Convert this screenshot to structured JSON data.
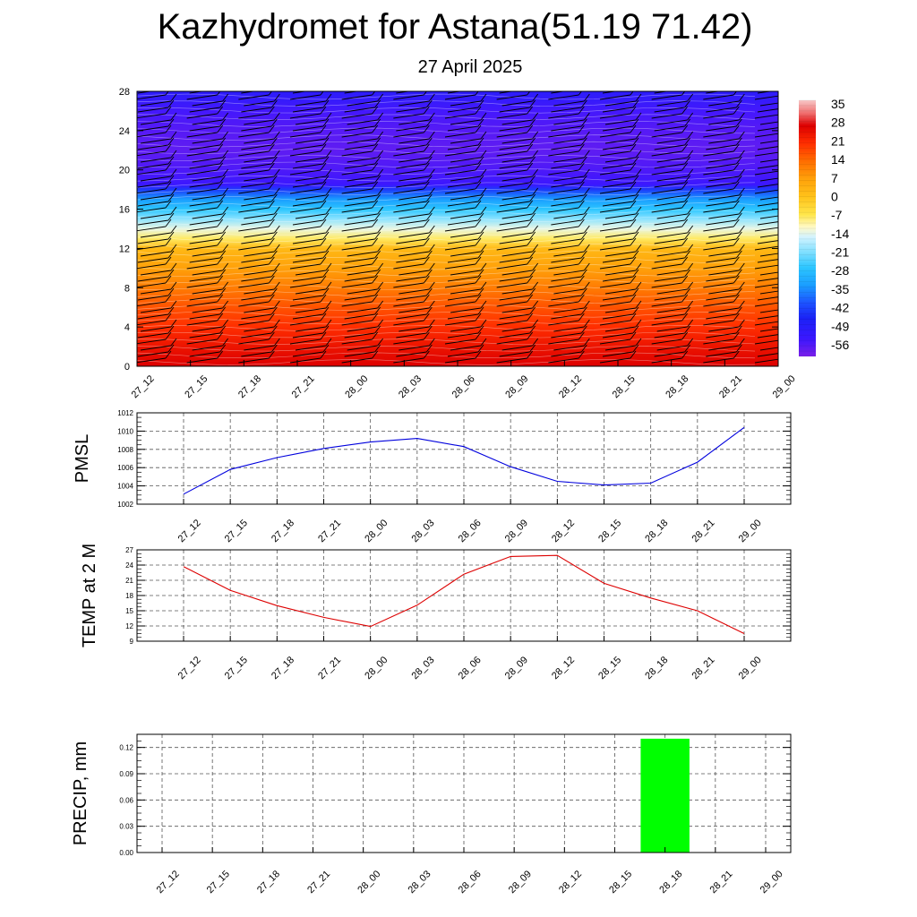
{
  "title": "Kazhydromet for Astana(51.19 71.42)",
  "subtitle": "27 April 2025",
  "colors": {
    "pmsl_line": "#0000dd",
    "temp_line": "#dd0000",
    "precip_bar": "#00ff00",
    "grid": "#555555",
    "frame": "#000000"
  },
  "chart_data": [
    {
      "type": "heatmap",
      "title": "",
      "xlabel": "",
      "ylabel": "",
      "x_categories": [
        "27_12",
        "27_15",
        "27_18",
        "27_21",
        "28_00",
        "28_03",
        "28_06",
        "28_09",
        "28_12",
        "28_15",
        "28_18",
        "28_21",
        "29_00"
      ],
      "y_ticks": [
        0,
        4,
        8,
        12,
        16,
        20,
        24,
        28
      ],
      "ylim": [
        0,
        28
      ],
      "levels_profile": {
        "height": [
          0,
          2,
          4,
          6,
          8,
          10,
          12,
          13,
          14,
          15,
          16,
          17,
          18,
          18.5,
          20,
          22,
          24,
          26,
          28
        ],
        "value": [
          28,
          25,
          21,
          17,
          12,
          7,
          2,
          -8,
          -14,
          -21,
          -28,
          -35,
          -45,
          -56,
          -58,
          -60,
          -59,
          -57,
          -52
        ]
      },
      "colorbar": {
        "labels": [
          "35",
          "28",
          "21",
          "14",
          "7",
          "0",
          "-7",
          "-14",
          "-21",
          "-28",
          "-35",
          "-42",
          "-49",
          "-56"
        ],
        "values": [
          35,
          28,
          21,
          14,
          7,
          0,
          -7,
          -14,
          -21,
          -28,
          -35,
          -42,
          -49,
          -56
        ],
        "range": [
          -63,
          38
        ]
      },
      "wind_barbs": true
    },
    {
      "type": "line",
      "title": "",
      "xlabel": "",
      "ylabel": "PMSL",
      "x": [
        "27_12",
        "27_15",
        "27_18",
        "27_21",
        "28_00",
        "28_03",
        "28_06",
        "28_09",
        "28_12",
        "28_15",
        "28_18",
        "28_21",
        "29_00"
      ],
      "series": [
        {
          "values": [
            1003.1,
            1005.8,
            1007.1,
            1008.1,
            1008.8,
            1009.2,
            1008.3,
            1006.1,
            1004.5,
            1004.1,
            1004.3,
            1006.6,
            1010.4
          ]
        }
      ],
      "y_ticks": [
        1002,
        1004,
        1006,
        1008,
        1010,
        1012
      ],
      "ylim": [
        1002,
        1012
      ],
      "grid": true
    },
    {
      "type": "line",
      "title": "",
      "xlabel": "",
      "ylabel": "TEMP at 2 M",
      "x": [
        "27_12",
        "27_15",
        "27_18",
        "27_21",
        "28_00",
        "28_03",
        "28_06",
        "28_09",
        "28_12",
        "28_15",
        "28_18",
        "28_21",
        "29_00"
      ],
      "series": [
        {
          "values": [
            23.7,
            19.0,
            16.0,
            13.7,
            11.9,
            16.1,
            22.2,
            25.7,
            25.9,
            20.4,
            17.5,
            15.0,
            10.5
          ]
        }
      ],
      "y_ticks": [
        9,
        12,
        15,
        18,
        21,
        24,
        27
      ],
      "ylim": [
        9,
        27
      ],
      "grid": true
    },
    {
      "type": "bar",
      "title": "",
      "xlabel": "",
      "ylabel": "PRECIP, mm",
      "categories": [
        "27_12",
        "27_15",
        "27_18",
        "27_21",
        "28_00",
        "28_03",
        "28_06",
        "28_09",
        "28_12",
        "28_15",
        "28_18",
        "28_21",
        "29_00"
      ],
      "values": [
        0,
        0,
        0,
        0,
        0,
        0,
        0,
        0,
        0,
        0,
        0.13,
        0,
        0
      ],
      "y_ticks": [
        "0.00",
        "0.03",
        "0.06",
        "0.09",
        "0.12"
      ],
      "y_tick_values": [
        0,
        0.03,
        0.06,
        0.09,
        0.12
      ],
      "ylim": [
        0,
        0.135
      ],
      "grid": true
    }
  ]
}
